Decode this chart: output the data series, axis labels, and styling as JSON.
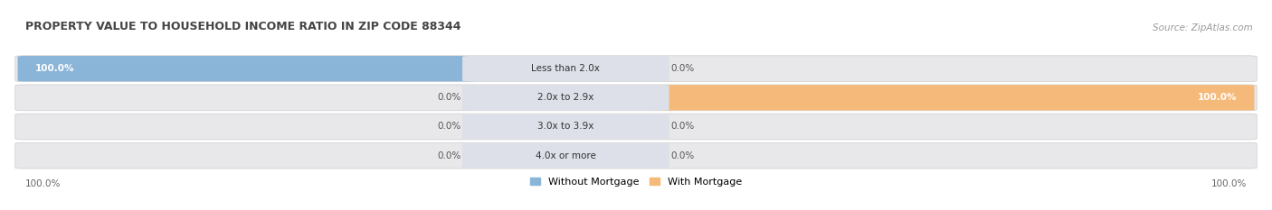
{
  "title": "PROPERTY VALUE TO HOUSEHOLD INCOME RATIO IN ZIP CODE 88344",
  "source": "Source: ZipAtlas.com",
  "categories": [
    "Less than 2.0x",
    "2.0x to 2.9x",
    "3.0x to 3.9x",
    "4.0x or more"
  ],
  "without_mortgage": [
    100.0,
    0.0,
    0.0,
    0.0
  ],
  "with_mortgage": [
    0.0,
    100.0,
    0.0,
    0.0
  ],
  "bar_color_without": "#8ab4d8",
  "bar_color_with": "#f5b97a",
  "bg_color": "#ffffff",
  "bar_bg_color": "#e8e8eb",
  "title_color": "#444444",
  "source_color": "#999999",
  "legend_labels": [
    "Without Mortgage",
    "With Mortgage"
  ],
  "axis_label_left": "100.0%",
  "axis_label_right": "100.0%",
  "center_label_bg": "#e0e0e8",
  "center_label_text": "#333333"
}
